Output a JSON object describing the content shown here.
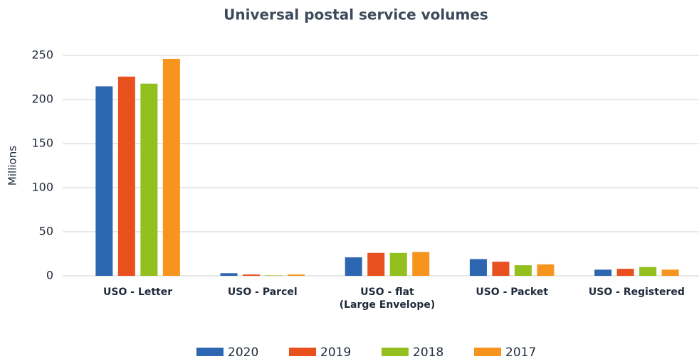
{
  "chart_data": {
    "type": "bar",
    "title": "Universal postal service volumes",
    "y_label": "Millions",
    "categories": [
      "USO - Letter",
      "USO - Parcel",
      "USO - flat\n(Large Envelope)",
      "USO - Packet",
      "USO - Registered"
    ],
    "series": [
      {
        "name": "2020",
        "color": "#2e67b1",
        "values": [
          215,
          3,
          21,
          19,
          7
        ]
      },
      {
        "name": "2019",
        "color": "#e8501e",
        "values": [
          226,
          1.5,
          26,
          16,
          8
        ]
      },
      {
        "name": "2018",
        "color": "#93c01f",
        "values": [
          218,
          0.5,
          26,
          12,
          10
        ]
      },
      {
        "name": "2017",
        "color": "#f7941d",
        "values": [
          246,
          1.5,
          27,
          13,
          7
        ]
      }
    ],
    "ylim": [
      0,
      250
    ],
    "yticks": [
      0,
      50,
      100,
      150,
      200,
      250
    ],
    "grid": true,
    "legend": "bottom"
  }
}
